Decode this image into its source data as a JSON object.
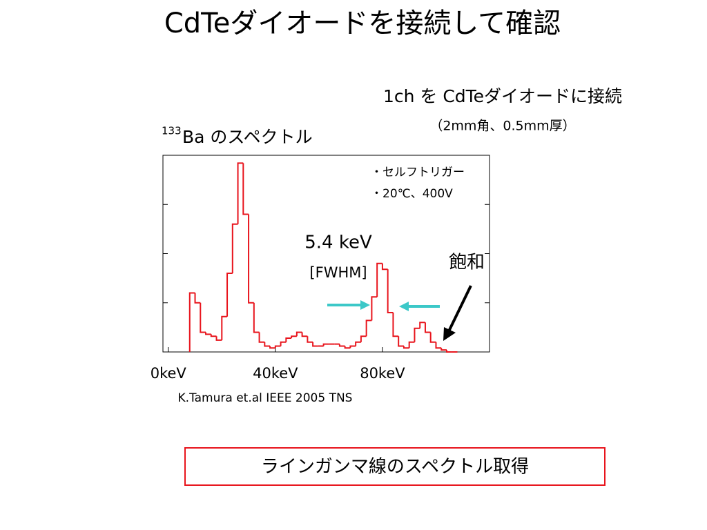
{
  "slide": {
    "title": "CdTeダイオードを接続して確認",
    "subtitle": "1ch を CdTeダイオードに接続",
    "detector": "（2mm角、0.5mm厚）",
    "reference": "K.Tamura et.al IEEE 2005 TNS",
    "box": "ラインガンマ線のスペクトル取得"
  },
  "chart_data": {
    "type": "histogram",
    "title": {
      "sup": "133",
      "text": "Ba のスペクトル"
    },
    "annotations": [
      "・セルフトリガー",
      "・20℃、400V",
      "5.4 keV",
      "[FWHM]",
      "飽和"
    ],
    "color": "#e8141c",
    "bins": [
      8,
      10,
      12,
      14,
      16,
      18,
      20,
      22,
      24,
      26,
      28,
      30,
      32,
      34,
      36,
      38,
      40,
      42,
      44,
      46,
      48,
      50,
      52,
      54,
      56,
      58,
      60,
      62,
      64,
      66,
      68,
      70,
      72,
      74,
      76,
      78,
      80,
      82,
      84,
      86,
      88,
      90,
      92,
      94,
      96,
      98,
      100,
      102,
      104,
      106,
      108
    ],
    "values": [
      30,
      25,
      10,
      9,
      8,
      6,
      18,
      40,
      65,
      96,
      70,
      25,
      10,
      5,
      3,
      2,
      3,
      5,
      7,
      8,
      10,
      8,
      5,
      3,
      3,
      4,
      4,
      4,
      3,
      2,
      3,
      5,
      8,
      16,
      28,
      45,
      42,
      20,
      8,
      3,
      2,
      5,
      12,
      15,
      10,
      5,
      2,
      1,
      0,
      0
    ],
    "xlim": [
      -2,
      120
    ],
    "ylim": [
      0,
      100
    ],
    "xticks": [
      {
        "value": 0,
        "label": "0keV"
      },
      {
        "value": 40,
        "label": "40keV"
      },
      {
        "value": 80,
        "label": "80keV"
      }
    ],
    "yticks": [
      0,
      25,
      50,
      75,
      100
    ]
  }
}
